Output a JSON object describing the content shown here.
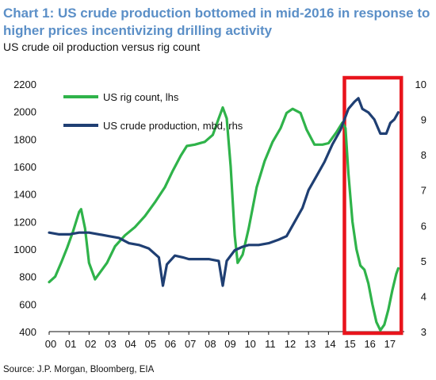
{
  "title": "Chart 1: US crude production bottomed in mid-2016 in response to higher prices incentivizing drilling activity",
  "subtitle": "US crude oil production versus rig count",
  "source": "Source: J.P. Morgan, Bloomberg, EIA",
  "colors": {
    "title": "#5b8fc7",
    "rig_count": "#2fb34a",
    "crude_production": "#1f3f73",
    "highlight_box": "#e8141c"
  },
  "chart_data": {
    "type": "line",
    "x_tick_labels": [
      "00",
      "01",
      "02",
      "03",
      "04",
      "05",
      "06",
      "07",
      "08",
      "09",
      "10",
      "11",
      "12",
      "13",
      "14",
      "15",
      "16",
      "17"
    ],
    "xlim": [
      2000,
      2017.8
    ],
    "left_axis": {
      "ylim": [
        400,
        2200
      ],
      "ticks": [
        "400",
        "600",
        "800",
        "1000",
        "1200",
        "1400",
        "1600",
        "1800",
        "2000",
        "2200"
      ]
    },
    "right_axis": {
      "ylim": [
        3,
        10
      ],
      "ticks": [
        "3",
        "4",
        "5",
        "6",
        "7",
        "8",
        "9",
        "10"
      ]
    },
    "legend_position": "top-left",
    "highlight": {
      "x_range": [
        2014.8,
        2017.65
      ],
      "y_range_lhs": [
        400,
        2200
      ]
    },
    "series": [
      {
        "name": "US rig count, lhs",
        "axis": "left",
        "points": [
          [
            2000.0,
            760
          ],
          [
            2000.3,
            800
          ],
          [
            2000.6,
            900
          ],
          [
            2000.9,
            1010
          ],
          [
            2001.2,
            1130
          ],
          [
            2001.5,
            1270
          ],
          [
            2001.6,
            1290
          ],
          [
            2001.8,
            1150
          ],
          [
            2002.0,
            900
          ],
          [
            2002.3,
            780
          ],
          [
            2002.5,
            820
          ],
          [
            2002.9,
            900
          ],
          [
            2003.3,
            1020
          ],
          [
            2003.8,
            1100
          ],
          [
            2004.3,
            1160
          ],
          [
            2004.8,
            1240
          ],
          [
            2005.3,
            1340
          ],
          [
            2005.8,
            1450
          ],
          [
            2006.2,
            1570
          ],
          [
            2006.6,
            1680
          ],
          [
            2006.9,
            1750
          ],
          [
            2007.3,
            1760
          ],
          [
            2007.8,
            1780
          ],
          [
            2008.2,
            1830
          ],
          [
            2008.5,
            1950
          ],
          [
            2008.7,
            2030
          ],
          [
            2008.9,
            1950
          ],
          [
            2009.1,
            1600
          ],
          [
            2009.3,
            1100
          ],
          [
            2009.45,
            900
          ],
          [
            2009.7,
            960
          ],
          [
            2010.0,
            1150
          ],
          [
            2010.4,
            1450
          ],
          [
            2010.8,
            1640
          ],
          [
            2011.2,
            1780
          ],
          [
            2011.6,
            1880
          ],
          [
            2011.9,
            1990
          ],
          [
            2012.2,
            2020
          ],
          [
            2012.6,
            1990
          ],
          [
            2012.9,
            1870
          ],
          [
            2013.3,
            1760
          ],
          [
            2013.7,
            1760
          ],
          [
            2014.0,
            1770
          ],
          [
            2014.4,
            1850
          ],
          [
            2014.7,
            1920
          ],
          [
            2014.85,
            1880
          ],
          [
            2015.0,
            1550
          ],
          [
            2015.2,
            1200
          ],
          [
            2015.4,
            1000
          ],
          [
            2015.6,
            880
          ],
          [
            2015.8,
            850
          ],
          [
            2016.0,
            750
          ],
          [
            2016.2,
            600
          ],
          [
            2016.4,
            470
          ],
          [
            2016.6,
            410
          ],
          [
            2016.8,
            450
          ],
          [
            2017.0,
            560
          ],
          [
            2017.2,
            700
          ],
          [
            2017.4,
            820
          ],
          [
            2017.5,
            860
          ]
        ]
      },
      {
        "name": "US crude production, mbd, rhs",
        "axis": "right",
        "points": [
          [
            2000.0,
            5.8
          ],
          [
            2000.5,
            5.75
          ],
          [
            2001.0,
            5.75
          ],
          [
            2001.5,
            5.8
          ],
          [
            2002.0,
            5.8
          ],
          [
            2002.5,
            5.75
          ],
          [
            2003.0,
            5.7
          ],
          [
            2003.5,
            5.65
          ],
          [
            2004.0,
            5.5
          ],
          [
            2004.5,
            5.45
          ],
          [
            2005.0,
            5.35
          ],
          [
            2005.5,
            5.1
          ],
          [
            2005.7,
            4.3
          ],
          [
            2005.9,
            4.9
          ],
          [
            2006.3,
            5.15
          ],
          [
            2006.7,
            5.1
          ],
          [
            2007.0,
            5.05
          ],
          [
            2007.5,
            5.05
          ],
          [
            2008.0,
            5.05
          ],
          [
            2008.5,
            5.0
          ],
          [
            2008.7,
            4.3
          ],
          [
            2008.9,
            5.0
          ],
          [
            2009.3,
            5.3
          ],
          [
            2009.7,
            5.4
          ],
          [
            2010.0,
            5.45
          ],
          [
            2010.5,
            5.45
          ],
          [
            2011.0,
            5.5
          ],
          [
            2011.5,
            5.6
          ],
          [
            2011.9,
            5.7
          ],
          [
            2012.3,
            6.1
          ],
          [
            2012.7,
            6.5
          ],
          [
            2013.0,
            7.0
          ],
          [
            2013.4,
            7.4
          ],
          [
            2013.8,
            7.8
          ],
          [
            2014.2,
            8.3
          ],
          [
            2014.6,
            8.7
          ],
          [
            2015.0,
            9.3
          ],
          [
            2015.3,
            9.5
          ],
          [
            2015.5,
            9.6
          ],
          [
            2015.7,
            9.3
          ],
          [
            2016.0,
            9.2
          ],
          [
            2016.3,
            9.0
          ],
          [
            2016.6,
            8.6
          ],
          [
            2016.9,
            8.6
          ],
          [
            2017.1,
            8.9
          ],
          [
            2017.3,
            9.0
          ],
          [
            2017.5,
            9.2
          ]
        ]
      }
    ]
  }
}
